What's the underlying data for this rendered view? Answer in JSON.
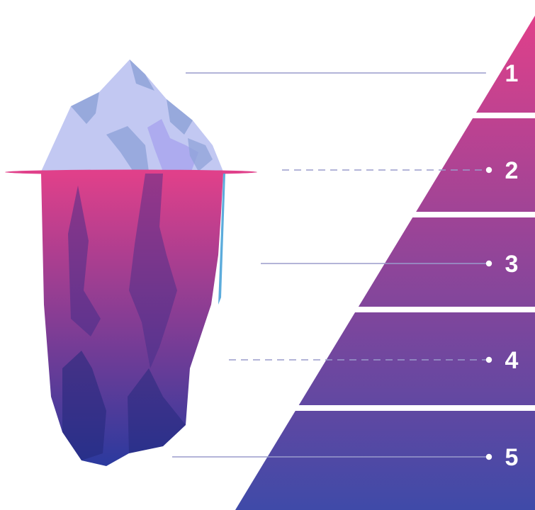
{
  "diagram": {
    "levels": [
      {
        "label": "1",
        "connector": "solid"
      },
      {
        "label": "2",
        "connector": "dashed"
      },
      {
        "label": "3",
        "connector": "solid"
      },
      {
        "label": "4",
        "connector": "dashed"
      },
      {
        "label": "5",
        "connector": "solid"
      }
    ],
    "colors": {
      "pyramid_top": "#e0408a",
      "pyramid_bottom": "#3f4aa8",
      "iceberg_top": "#c2c8f2",
      "iceberg_shadow": "#8fa3d8",
      "underwater_top": "#e0408a",
      "underwater_bottom": "#2b3a9e",
      "waterline": "#e0408a",
      "connector": "#9a9ccc"
    }
  }
}
